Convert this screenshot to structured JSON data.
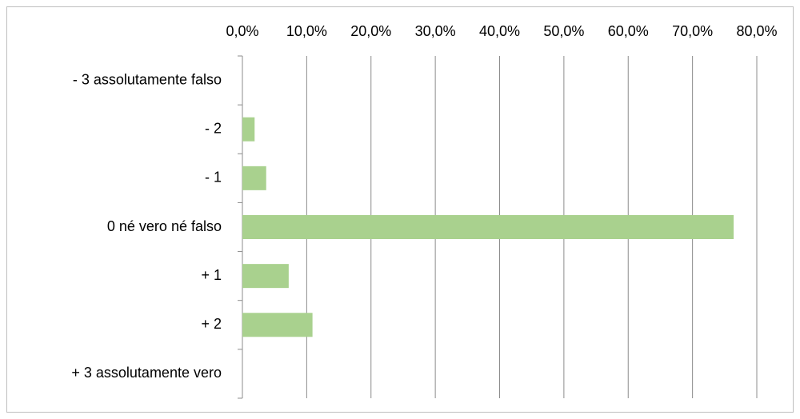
{
  "chart_data": {
    "type": "bar",
    "orientation": "horizontal",
    "categories": [
      "- 3 assolutamente falso",
      "- 2",
      "- 1",
      "0 né vero né falso",
      "+ 1",
      "+ 2",
      "+ 3 assolutamente vero"
    ],
    "values": [
      0,
      1.9,
      3.7,
      76.4,
      7.2,
      10.9,
      0
    ],
    "color": "#a9d18e",
    "xlim": [
      0,
      80
    ],
    "xticks": [
      {
        "value": 0,
        "label": "0,0%"
      },
      {
        "value": 10,
        "label": "10,0%"
      },
      {
        "value": 20,
        "label": "20,0%"
      },
      {
        "value": 30,
        "label": "30,0%"
      },
      {
        "value": 40,
        "label": "40,0%"
      },
      {
        "value": 50,
        "label": "50,0%"
      },
      {
        "value": 60,
        "label": "60,0%"
      },
      {
        "value": 70,
        "label": "70,0%"
      },
      {
        "value": 80,
        "label": "80,0%"
      }
    ],
    "grid": true
  }
}
